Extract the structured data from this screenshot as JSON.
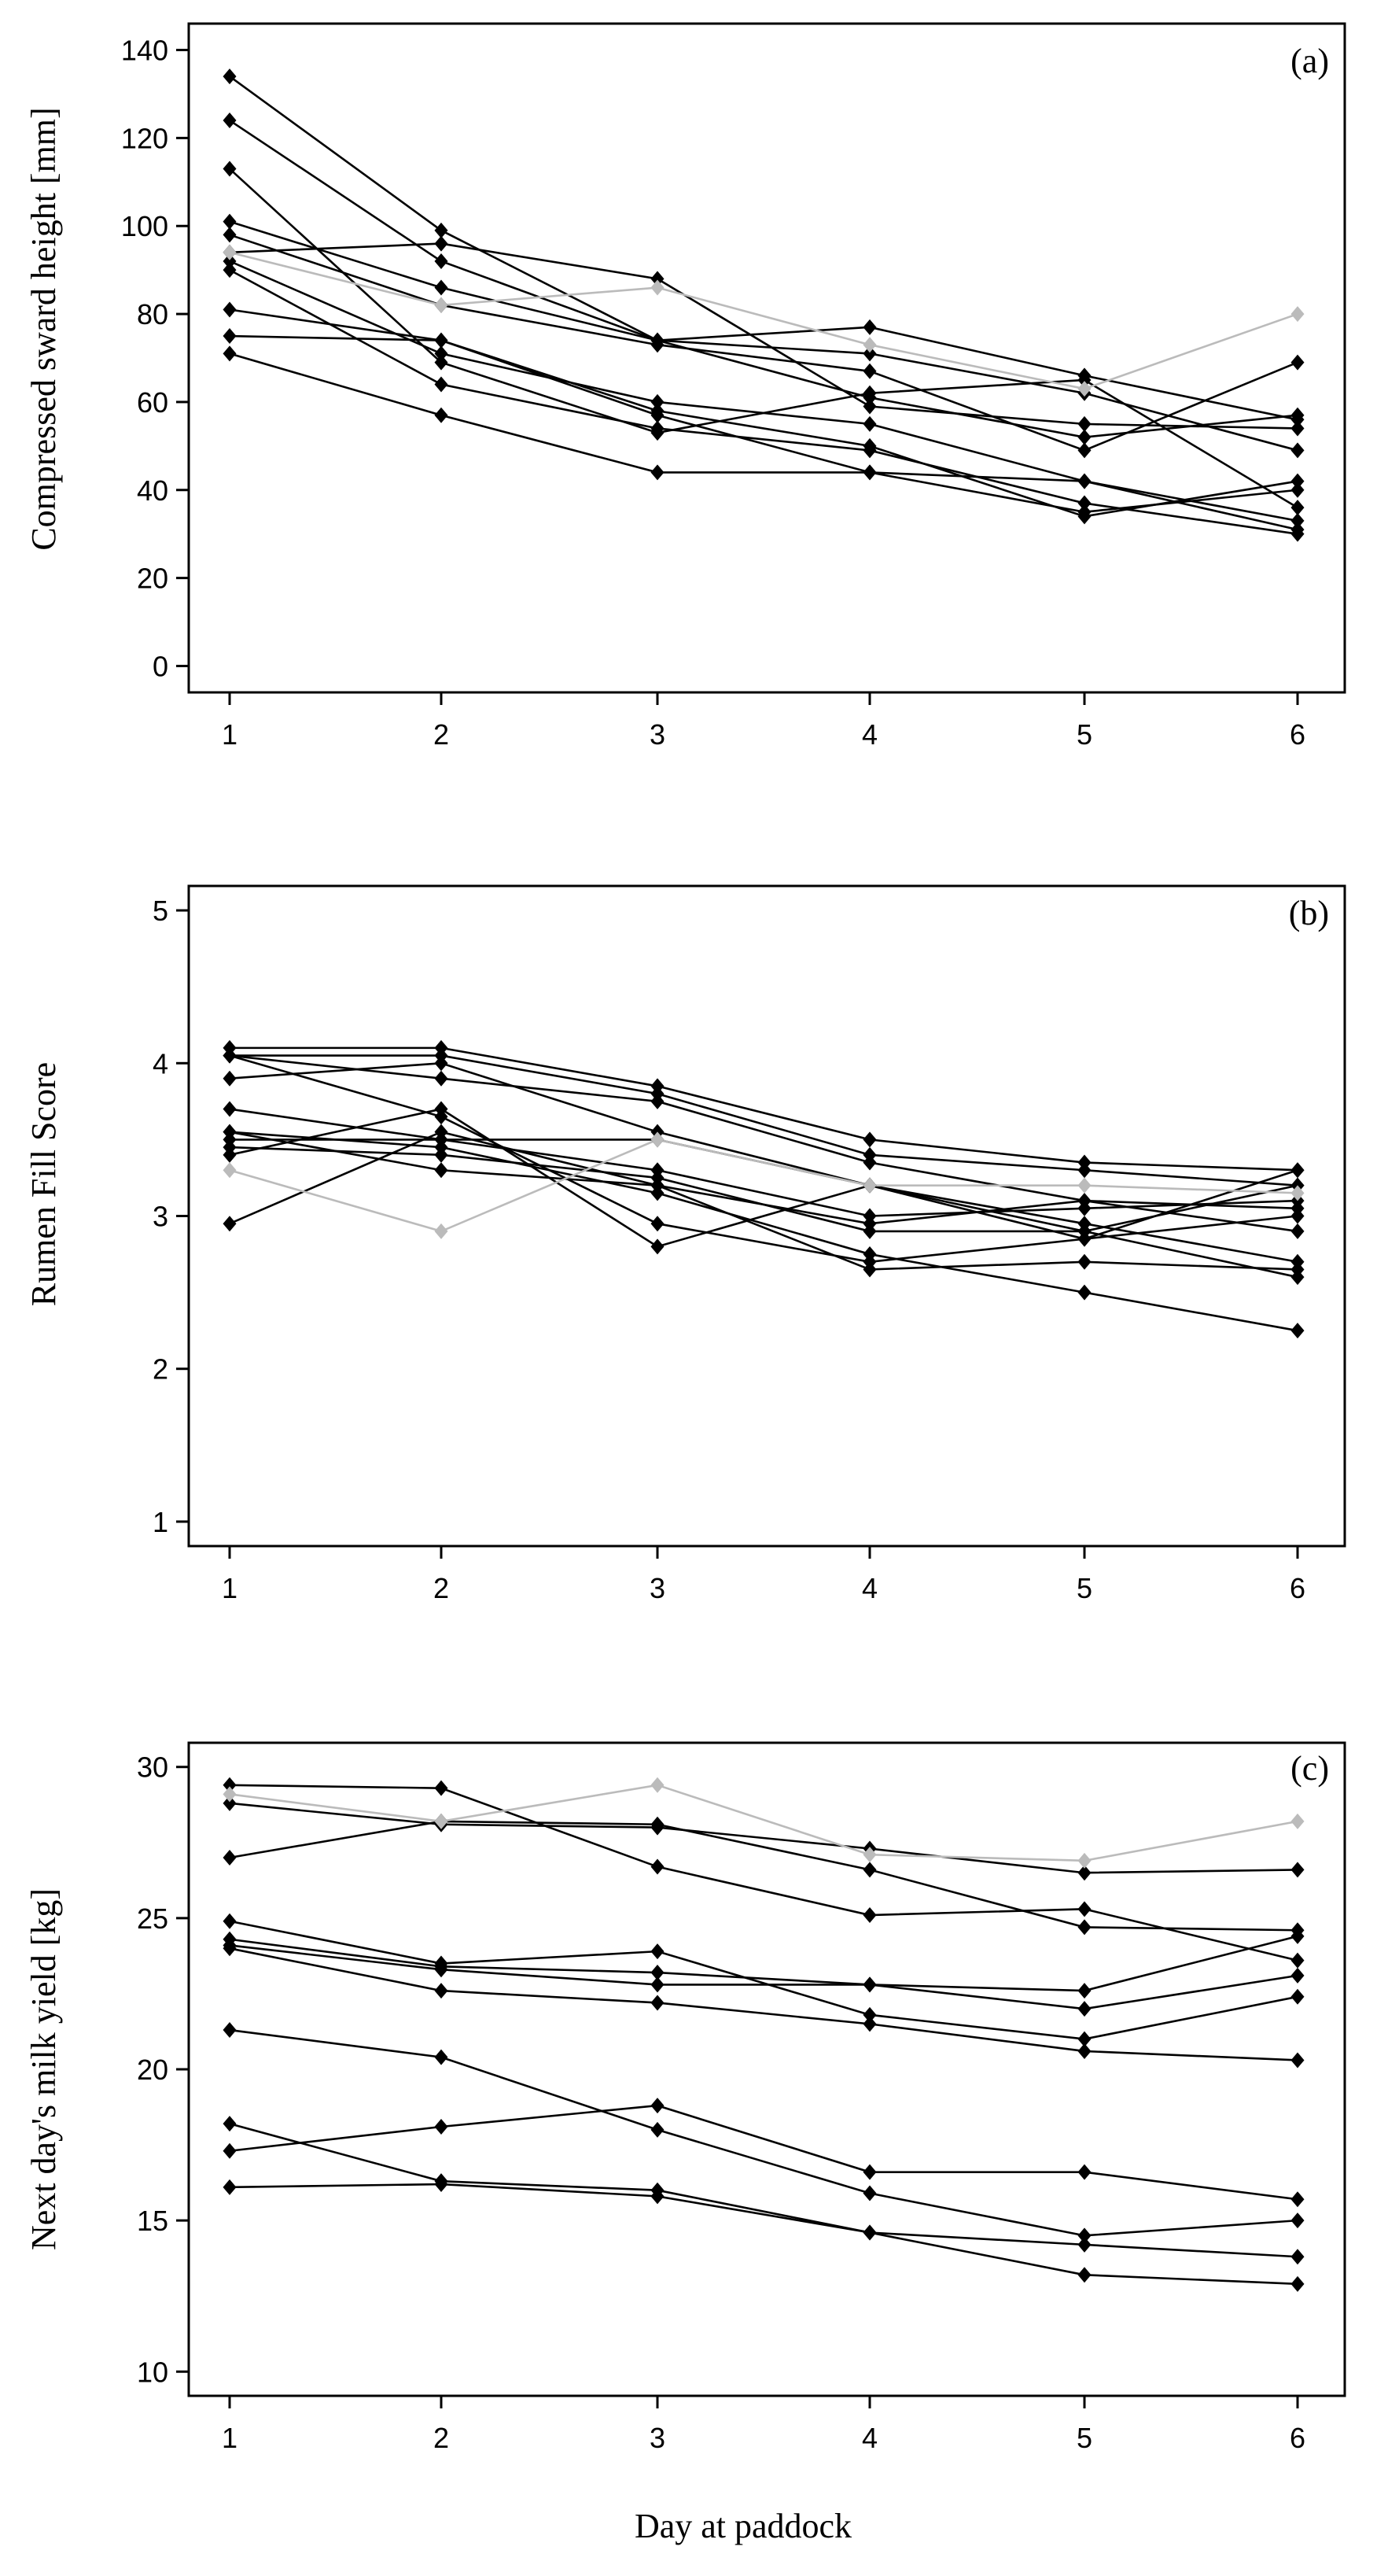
{
  "chart_data": [
    {
      "type": "line",
      "panel_label": "(a)",
      "ylabel": "Compressed sward height [mm]",
      "xlabel": "",
      "x": [
        1,
        2,
        3,
        4,
        5,
        6
      ],
      "xticks": [
        "1",
        "2",
        "3",
        "4",
        "5",
        "6"
      ],
      "ylim": [
        -6,
        146
      ],
      "yticks": [
        0,
        20,
        40,
        60,
        80,
        100,
        120,
        140
      ],
      "ytick_labels": [
        "0",
        "20",
        "40",
        "60",
        "80",
        "100",
        "120",
        "140"
      ],
      "grid": false,
      "colors": {
        "main": "#000000",
        "highlight": "#bbbbbb"
      },
      "series": [
        {
          "name": "a1",
          "color": "main",
          "values": [
            134,
            99,
            74,
            77,
            66,
            56
          ]
        },
        {
          "name": "a2",
          "color": "main",
          "values": [
            124,
            92,
            74,
            61,
            52,
            57
          ]
        },
        {
          "name": "a3",
          "color": "main",
          "values": [
            113,
            69,
            53,
            62,
            65,
            36
          ]
        },
        {
          "name": "a4",
          "color": "main",
          "values": [
            101,
            86,
            74,
            71,
            62,
            49
          ]
        },
        {
          "name": "a5",
          "color": "main",
          "values": [
            98,
            82,
            73,
            67,
            49,
            69
          ]
        },
        {
          "name": "a6",
          "color": "main",
          "values": [
            94,
            96,
            88,
            59,
            55,
            54
          ]
        },
        {
          "name": "a7",
          "color": "main",
          "values": [
            92,
            71,
            60,
            55,
            42,
            31
          ]
        },
        {
          "name": "a8",
          "color": "main",
          "values": [
            90,
            64,
            54,
            49,
            37,
            30
          ]
        },
        {
          "name": "a9",
          "color": "main",
          "values": [
            81,
            74,
            57,
            44,
            35,
            40
          ]
        },
        {
          "name": "a10",
          "color": "main",
          "values": [
            75,
            74,
            58,
            50,
            34,
            42
          ]
        },
        {
          "name": "a11",
          "color": "main",
          "values": [
            71,
            57,
            44,
            44,
            42,
            33
          ]
        },
        {
          "name": "a12",
          "color": "highlight",
          "values": [
            94,
            82,
            86,
            73,
            63,
            80
          ]
        }
      ]
    },
    {
      "type": "line",
      "panel_label": "(b)",
      "ylabel": "Rumen Fill Score",
      "xlabel": "",
      "x": [
        1,
        2,
        3,
        4,
        5,
        6
      ],
      "xticks": [
        "1",
        "2",
        "3",
        "4",
        "5",
        "6"
      ],
      "ylim": [
        0.84,
        5.16
      ],
      "yticks": [
        1,
        2,
        3,
        4,
        5
      ],
      "ytick_labels": [
        "1",
        "2",
        "3",
        "4",
        "5"
      ],
      "grid": false,
      "colors": {
        "main": "#000000",
        "highlight": "#bbbbbb"
      },
      "series": [
        {
          "name": "b1",
          "color": "main",
          "values": [
            4.1,
            4.1,
            3.85,
            3.5,
            3.35,
            3.3
          ]
        },
        {
          "name": "b2",
          "color": "main",
          "values": [
            4.05,
            4.05,
            3.8,
            3.4,
            3.3,
            3.2
          ]
        },
        {
          "name": "b3",
          "color": "main",
          "values": [
            4.05,
            3.9,
            3.75,
            3.35,
            3.1,
            3.05
          ]
        },
        {
          "name": "b4",
          "color": "main",
          "values": [
            3.9,
            4.0,
            3.55,
            3.2,
            2.9,
            3.2
          ]
        },
        {
          "name": "b5",
          "color": "main",
          "values": [
            3.7,
            3.5,
            3.5,
            3.2,
            2.85,
            3.0
          ]
        },
        {
          "name": "b6",
          "color": "main",
          "values": [
            3.55,
            3.3,
            3.2,
            2.95,
            3.1,
            2.9
          ]
        },
        {
          "name": "b7",
          "color": "main",
          "values": [
            3.5,
            3.5,
            3.3,
            3.0,
            3.05,
            3.1
          ]
        },
        {
          "name": "b8",
          "color": "main",
          "values": [
            3.45,
            3.4,
            3.25,
            2.9,
            2.9,
            2.6
          ]
        },
        {
          "name": "b9",
          "color": "main",
          "values": [
            3.4,
            3.7,
            2.8,
            3.2,
            2.95,
            2.7
          ]
        },
        {
          "name": "b10",
          "color": "main",
          "values": [
            3.55,
            3.45,
            3.15,
            2.75,
            2.5,
            2.25
          ]
        },
        {
          "name": "b11",
          "color": "main",
          "values": [
            2.95,
            3.55,
            3.2,
            2.65,
            2.7,
            2.65
          ]
        },
        {
          "name": "b12",
          "color": "main",
          "values": [
            4.05,
            3.65,
            2.95,
            2.7,
            2.85,
            3.3
          ]
        },
        {
          "name": "b13",
          "color": "highlight",
          "values": [
            3.3,
            2.9,
            3.5,
            3.2,
            3.2,
            3.15
          ]
        }
      ]
    },
    {
      "type": "line",
      "panel_label": "(c)",
      "ylabel": "Next day's milk yield [kg]",
      "xlabel": "Day at paddock",
      "x": [
        1,
        2,
        3,
        4,
        5,
        6
      ],
      "xticks": [
        "1",
        "2",
        "3",
        "4",
        "5",
        "6"
      ],
      "ylim": [
        9.2,
        30.8
      ],
      "yticks": [
        10,
        15,
        20,
        25,
        30
      ],
      "ytick_labels": [
        "10",
        "15",
        "20",
        "25",
        "30"
      ],
      "grid": false,
      "colors": {
        "main": "#000000",
        "highlight": "#bbbbbb"
      },
      "series": [
        {
          "name": "c1",
          "color": "main",
          "values": [
            29.4,
            29.3,
            26.7,
            25.1,
            25.3,
            23.6
          ]
        },
        {
          "name": "c2",
          "color": "main",
          "values": [
            28.8,
            28.1,
            28.0,
            27.3,
            26.5,
            26.6
          ]
        },
        {
          "name": "c3",
          "color": "main",
          "values": [
            27.0,
            28.2,
            28.1,
            26.6,
            24.7,
            24.6
          ]
        },
        {
          "name": "c4",
          "color": "main",
          "values": [
            24.9,
            23.5,
            23.9,
            21.8,
            21.0,
            22.4
          ]
        },
        {
          "name": "c5",
          "color": "main",
          "values": [
            24.3,
            23.4,
            23.2,
            22.8,
            22.6,
            24.4
          ]
        },
        {
          "name": "c6",
          "color": "main",
          "values": [
            24.1,
            23.3,
            22.8,
            22.8,
            22.0,
            23.1
          ]
        },
        {
          "name": "c7",
          "color": "main",
          "values": [
            24.0,
            22.6,
            22.2,
            21.5,
            20.6,
            20.3
          ]
        },
        {
          "name": "c8",
          "color": "main",
          "values": [
            21.3,
            20.4,
            18.0,
            15.9,
            14.5,
            15.0
          ]
        },
        {
          "name": "c9",
          "color": "main",
          "values": [
            18.2,
            16.3,
            16.0,
            14.6,
            14.2,
            13.8
          ]
        },
        {
          "name": "c10",
          "color": "main",
          "values": [
            17.3,
            18.1,
            18.8,
            16.6,
            16.6,
            15.7
          ]
        },
        {
          "name": "c11",
          "color": "main",
          "values": [
            16.1,
            16.2,
            15.8,
            14.6,
            13.2,
            12.9
          ]
        },
        {
          "name": "c12",
          "color": "highlight",
          "values": [
            29.1,
            28.2,
            29.4,
            27.1,
            26.9,
            28.2
          ]
        }
      ]
    }
  ]
}
